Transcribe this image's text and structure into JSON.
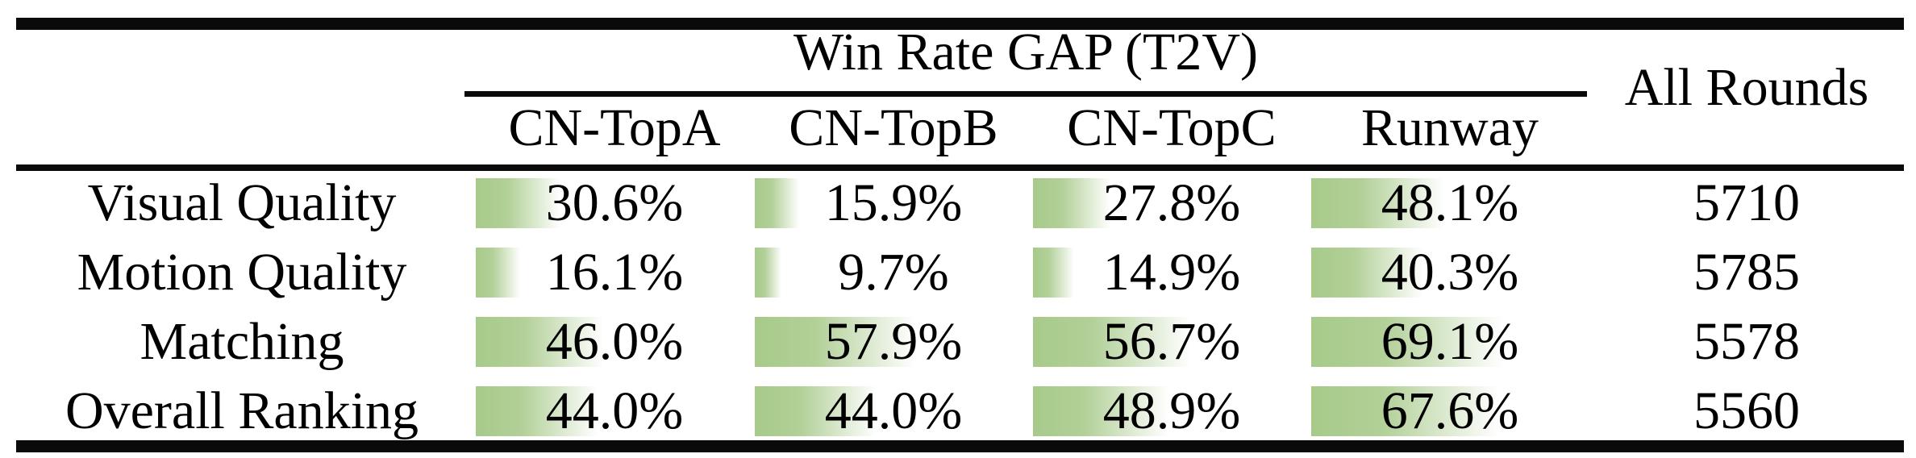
{
  "table": {
    "title": "Win Rate GAP (T2V)",
    "all_rounds_header": "All Rounds",
    "model_columns": [
      "CN-TopA",
      "CN-TopB",
      "CN-TopC",
      "Runway"
    ],
    "rows": [
      {
        "label": "Visual Quality",
        "cells": [
          {
            "text": "30.6%",
            "value": 30.6
          },
          {
            "text": "15.9%",
            "value": 15.9
          },
          {
            "text": "27.8%",
            "value": 27.8
          },
          {
            "text": "48.1%",
            "value": 48.1
          }
        ],
        "all_rounds": "5710"
      },
      {
        "label": "Motion Quality",
        "cells": [
          {
            "text": "16.1%",
            "value": 16.1
          },
          {
            "text": "9.7%",
            "value": 9.7
          },
          {
            "text": "14.9%",
            "value": 14.9
          },
          {
            "text": "40.3%",
            "value": 40.3
          }
        ],
        "all_rounds": "5785"
      },
      {
        "label": "Matching",
        "cells": [
          {
            "text": "46.0%",
            "value": 46.0
          },
          {
            "text": "57.9%",
            "value": 57.9
          },
          {
            "text": "56.7%",
            "value": 56.7
          },
          {
            "text": "69.1%",
            "value": 69.1
          }
        ],
        "all_rounds": "5578"
      },
      {
        "label": "Overall Ranking",
        "cells": [
          {
            "text": "44.0%",
            "value": 44.0
          },
          {
            "text": "44.0%",
            "value": 44.0
          },
          {
            "text": "48.9%",
            "value": 48.9
          },
          {
            "text": "67.6%",
            "value": 67.6
          }
        ],
        "all_rounds": "5560"
      }
    ],
    "bar_color_start": "#a7ca8a",
    "bar_color_end": "#ffffff",
    "text_color": "#000000",
    "rule_color": "#0a0a0a"
  },
  "chart_data": {
    "type": "table",
    "title": "Win Rate GAP (T2V)",
    "columns": [
      "CN-TopA",
      "CN-TopB",
      "CN-TopC",
      "Runway",
      "All Rounds"
    ],
    "row_labels": [
      "Visual Quality",
      "Motion Quality",
      "Matching",
      "Overall Ranking"
    ],
    "series": [
      {
        "name": "CN-TopA",
        "values": [
          30.6,
          16.1,
          46.0,
          44.0
        ]
      },
      {
        "name": "CN-TopB",
        "values": [
          15.9,
          9.7,
          57.9,
          44.0
        ]
      },
      {
        "name": "CN-TopC",
        "values": [
          27.8,
          14.9,
          56.7,
          48.9
        ]
      },
      {
        "name": "Runway",
        "values": [
          48.1,
          40.3,
          69.1,
          67.6
        ]
      }
    ],
    "all_rounds": [
      5710,
      5785,
      5578,
      5560
    ],
    "unit": "percent",
    "value_range": [
      0,
      100
    ],
    "bar_style": "in-cell horizontal data bars, width proportional to value, green-to-white gradient, value text centered over column"
  }
}
